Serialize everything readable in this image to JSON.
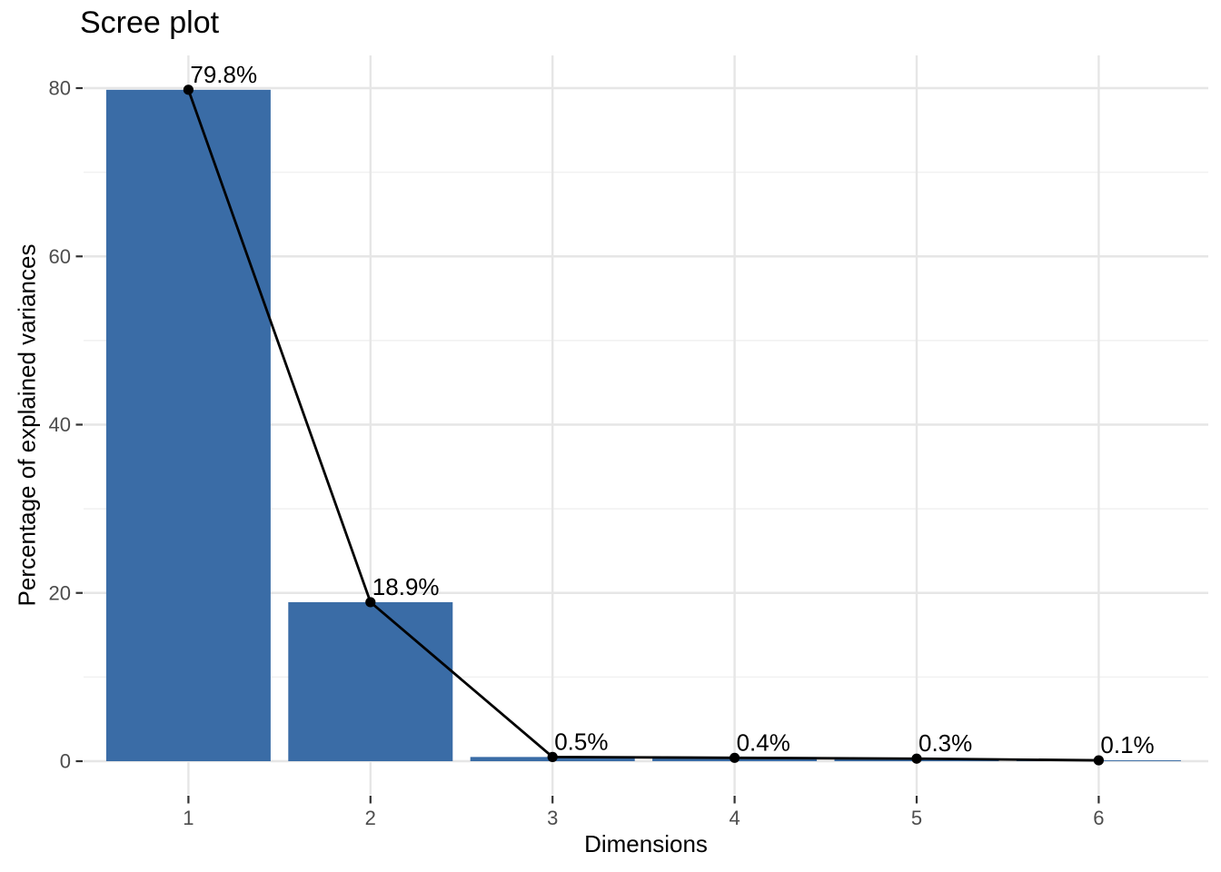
{
  "chart_data": {
    "type": "bar",
    "subtype": "bar-with-line-overlay",
    "title": "Scree plot",
    "xlabel": "Dimensions",
    "ylabel": "Percentage of explained variances",
    "categories": [
      "1",
      "2",
      "3",
      "4",
      "5",
      "6"
    ],
    "values": [
      79.8,
      18.9,
      0.5,
      0.4,
      0.3,
      0.1
    ],
    "point_labels": [
      "79.8%",
      "18.9%",
      "0.5%",
      "0.4%",
      "0.3%",
      "0.1%"
    ],
    "y_major_ticks": [
      0,
      20,
      40,
      60,
      80
    ],
    "y_tick_labels": [
      "0",
      "20",
      "40",
      "60",
      "80"
    ],
    "y_minor_gridlines": [
      10,
      30,
      50,
      70
    ],
    "ylim": [
      -4,
      83.9
    ],
    "grid": "major-and-minor-horizontal, major-vertical",
    "legend": "none",
    "colors": {
      "bar_fill": "#3A6CA6",
      "line": "#000000",
      "point": "#000000",
      "grid_major": "#E6E6E6",
      "grid_minor": "#F1F1F1",
      "tick_mark": "#333333",
      "tick_label": "#4D4D4D",
      "text": "#000000",
      "background": "#FFFFFF"
    }
  }
}
